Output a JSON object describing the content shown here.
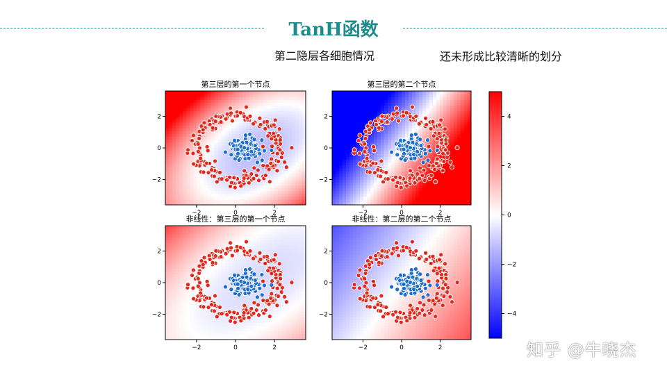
{
  "header": {
    "title": "TanH函数",
    "subtitle": "第二隐层各细胞情况",
    "note": "还未形成比较清晰的划分"
  },
  "watermark": "知乎 @牛晓杰",
  "colors": {
    "accent": "#1f8c8c",
    "inner_points": "#1f6fd1",
    "outer_points": "#e02a1e"
  },
  "chart_data": [
    {
      "type": "heatmap",
      "title": "第三层的第一个节点",
      "xlim": [
        -3.6,
        3.6
      ],
      "ylim": [
        -3.6,
        3.6
      ],
      "xticks": [
        -2,
        0,
        2
      ],
      "yticks": [
        -2,
        0,
        2
      ],
      "tick_labels": [
        "−2",
        "0",
        "2"
      ],
      "field": {
        "a": -0.5,
        "b": 0.3,
        "c": -1.0,
        "d": 0.5,
        "e": -0.2
      },
      "overlay": "scatter: inner class (blue) near origin, outer ring (red) radius ~2.3"
    },
    {
      "type": "heatmap",
      "title": "第三层的第二个节点",
      "xlim": [
        -3.6,
        3.6
      ],
      "ylim": [
        -3.6,
        3.6
      ],
      "xticks": [
        -2,
        0,
        2
      ],
      "yticks": [
        -2,
        0,
        2
      ],
      "tick_labels": [
        "−2",
        "0",
        "2"
      ],
      "field": {
        "a": 1.9,
        "b": -1.1,
        "c": 0.0,
        "d": 0.0,
        "e": 0.0
      }
    },
    {
      "type": "heatmap",
      "title": "非线性：第三层的第一个节点",
      "xlim": [
        -3.6,
        3.6
      ],
      "ylim": [
        -3.6,
        3.6
      ],
      "xticks": [
        -2,
        0,
        2
      ],
      "yticks": [
        -2,
        0,
        2
      ],
      "tick_labels": [
        "−2",
        "0",
        "2"
      ],
      "field": {
        "a": -0.2,
        "b": 0.1,
        "c": -0.6,
        "d": 0.2,
        "e": -0.1
      }
    },
    {
      "type": "heatmap",
      "title": "非线性：第二层的第二个节点",
      "xlim": [
        -3.6,
        3.6
      ],
      "ylim": [
        -3.6,
        3.6
      ],
      "xticks": [
        -2,
        0,
        2
      ],
      "yticks": [
        -2,
        0,
        2
      ],
      "tick_labels": [
        "−2",
        "0",
        "2"
      ],
      "field": {
        "a": 0.6,
        "b": -0.35,
        "c": 0.0,
        "d": 0.0,
        "e": 0.0
      }
    }
  ],
  "colorbar": {
    "range": [
      -5,
      5
    ],
    "ticks": [
      4,
      2,
      0,
      -2,
      -4
    ],
    "tick_labels": [
      "4",
      "2",
      "0",
      "−2",
      "−4"
    ],
    "cmap": "bwr"
  }
}
